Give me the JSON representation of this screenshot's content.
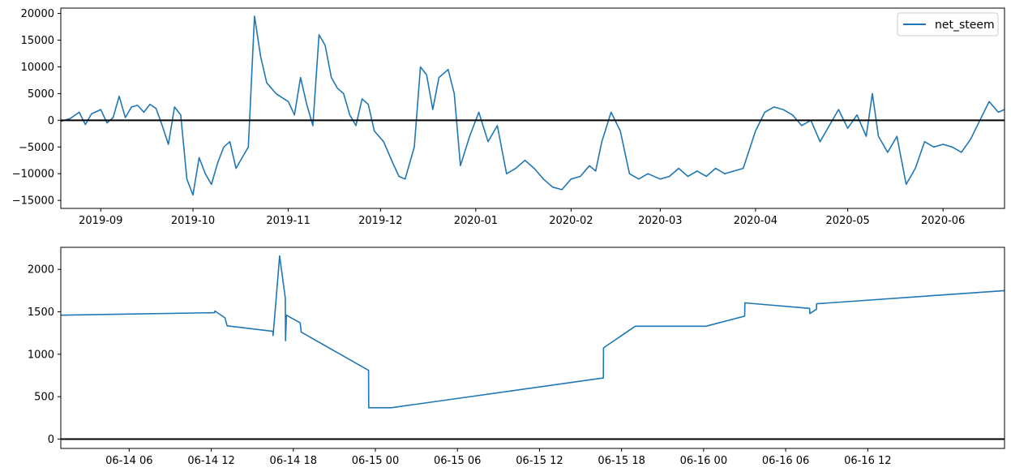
{
  "colors": {
    "series": "#1f77b4",
    "zero_line": "#000000",
    "axes": "#000000",
    "legend_frame": "#cccccc",
    "background": "#ffffff"
  },
  "chart_data": [
    {
      "type": "line",
      "title": "",
      "xlabel": "",
      "ylabel": "",
      "legend": {
        "placement": "top-right",
        "entries": [
          "net_steem"
        ]
      },
      "grid": false,
      "xlim": [
        "2019-08-19",
        "2020-06-21"
      ],
      "ylim": [
        -16500,
        21000
      ],
      "x_ticks": [
        {
          "date": "2019-09-01",
          "label": "2019-09"
        },
        {
          "date": "2019-10-01",
          "label": "2019-10"
        },
        {
          "date": "2019-11-01",
          "label": "2019-11"
        },
        {
          "date": "2019-12-01",
          "label": "2019-12"
        },
        {
          "date": "2020-01-01",
          "label": "2020-01"
        },
        {
          "date": "2020-02-01",
          "label": "2020-02"
        },
        {
          "date": "2020-03-01",
          "label": "2020-03"
        },
        {
          "date": "2020-04-01",
          "label": "2020-04"
        },
        {
          "date": "2020-05-01",
          "label": "2020-05"
        },
        {
          "date": "2020-06-01",
          "label": "2020-06"
        }
      ],
      "y_ticks": [
        {
          "value": 20000,
          "label": "20000"
        },
        {
          "value": 15000,
          "label": "15000"
        },
        {
          "value": 10000,
          "label": "10000"
        },
        {
          "value": 5000,
          "label": "5000"
        },
        {
          "value": 0,
          "label": "0"
        },
        {
          "value": -5000,
          "label": "−5000"
        },
        {
          "value": -10000,
          "label": "−10000"
        },
        {
          "value": -15000,
          "label": "−15000"
        }
      ],
      "hline": 0,
      "series": [
        {
          "name": "net_steem",
          "x": [
            "2019-08-19",
            "2019-08-22",
            "2019-08-25",
            "2019-08-27",
            "2019-08-29",
            "2019-09-01",
            "2019-09-03",
            "2019-09-05",
            "2019-09-07",
            "2019-09-09",
            "2019-09-11",
            "2019-09-13",
            "2019-09-15",
            "2019-09-17",
            "2019-09-19",
            "2019-09-21",
            "2019-09-23",
            "2019-09-25",
            "2019-09-27",
            "2019-09-29",
            "2019-10-01",
            "2019-10-03",
            "2019-10-05",
            "2019-10-07",
            "2019-10-09",
            "2019-10-11",
            "2019-10-13",
            "2019-10-15",
            "2019-10-17",
            "2019-10-19",
            "2019-10-21",
            "2019-10-23",
            "2019-10-25",
            "2019-10-28",
            "2019-11-01",
            "2019-11-03",
            "2019-11-05",
            "2019-11-07",
            "2019-11-09",
            "2019-11-11",
            "2019-11-13",
            "2019-11-15",
            "2019-11-17",
            "2019-11-19",
            "2019-11-21",
            "2019-11-23",
            "2019-11-25",
            "2019-11-27",
            "2019-11-29",
            "2019-12-02",
            "2019-12-05",
            "2019-12-07",
            "2019-12-09",
            "2019-12-12",
            "2019-12-14",
            "2019-12-16",
            "2019-12-18",
            "2019-12-20",
            "2019-12-23",
            "2019-12-25",
            "2019-12-27",
            "2019-12-30",
            "2020-01-02",
            "2020-01-05",
            "2020-01-08",
            "2020-01-11",
            "2020-01-14",
            "2020-01-17",
            "2020-01-20",
            "2020-01-23",
            "2020-01-26",
            "2020-01-29",
            "2020-02-01",
            "2020-02-04",
            "2020-02-07",
            "2020-02-09",
            "2020-02-11",
            "2020-02-14",
            "2020-02-17",
            "2020-02-20",
            "2020-02-23",
            "2020-02-26",
            "2020-03-01",
            "2020-03-04",
            "2020-03-07",
            "2020-03-10",
            "2020-03-13",
            "2020-03-16",
            "2020-03-19",
            "2020-03-22",
            "2020-03-25",
            "2020-03-28",
            "2020-04-01",
            "2020-04-04",
            "2020-04-07",
            "2020-04-10",
            "2020-04-13",
            "2020-04-16",
            "2020-04-19",
            "2020-04-22",
            "2020-04-25",
            "2020-04-28",
            "2020-05-01",
            "2020-05-04",
            "2020-05-07",
            "2020-05-09",
            "2020-05-11",
            "2020-05-14",
            "2020-05-17",
            "2020-05-20",
            "2020-05-23",
            "2020-05-26",
            "2020-05-29",
            "2020-06-01",
            "2020-06-04",
            "2020-06-07",
            "2020-06-10",
            "2020-06-13",
            "2020-06-16",
            "2020-06-19",
            "2020-06-21"
          ],
          "y": [
            -200,
            300,
            1500,
            -800,
            1200,
            2000,
            -500,
            500,
            4500,
            500,
            2500,
            2800,
            1500,
            3000,
            2200,
            -1000,
            -4500,
            2500,
            1000,
            -11000,
            -14000,
            -7000,
            -10000,
            -12000,
            -8000,
            -5000,
            -4000,
            -9000,
            -7000,
            -5000,
            19500,
            12000,
            7000,
            5000,
            3500,
            1000,
            8000,
            3000,
            -1000,
            16000,
            14000,
            8000,
            6000,
            5000,
            1000,
            -1000,
            4000,
            3000,
            -2000,
            -4000,
            -8000,
            -10500,
            -11000,
            -5000,
            10000,
            8500,
            2000,
            8000,
            9500,
            5000,
            -8500,
            -3000,
            1500,
            -4000,
            -1000,
            -10000,
            -9000,
            -7500,
            -9000,
            -11000,
            -12500,
            -13000,
            -11000,
            -10500,
            -8500,
            -9500,
            -4000,
            1500,
            -2000,
            -10000,
            -11000,
            -10000,
            -11000,
            -10500,
            -9000,
            -10500,
            -9500,
            -10500,
            -9000,
            -10000,
            -9500,
            -9000,
            -2000,
            1500,
            2500,
            2000,
            1000,
            -1000,
            0,
            -4000,
            -1000,
            2000,
            -1500,
            1000,
            -3000,
            5000,
            -3000,
            -6000,
            -3000,
            -12000,
            -9000,
            -4000,
            -5000,
            -4500,
            -5000,
            -6000,
            -3500,
            0,
            3500,
            1500,
            2000
          ]
        }
      ]
    },
    {
      "type": "line",
      "title": "",
      "xlabel": "",
      "ylabel": "",
      "grid": false,
      "xlim": [
        "2020-06-14T01:00",
        "2020-06-16T22:00"
      ],
      "ylim": [
        -110,
        2260
      ],
      "x_ticks": [
        {
          "datetime": "2020-06-14T06:00",
          "label": "06-14 06"
        },
        {
          "datetime": "2020-06-14T12:00",
          "label": "06-14 12"
        },
        {
          "datetime": "2020-06-14T18:00",
          "label": "06-14 18"
        },
        {
          "datetime": "2020-06-15T00:00",
          "label": "06-15 00"
        },
        {
          "datetime": "2020-06-15T06:00",
          "label": "06-15 06"
        },
        {
          "datetime": "2020-06-15T12:00",
          "label": "06-15 12"
        },
        {
          "datetime": "2020-06-15T18:00",
          "label": "06-15 18"
        },
        {
          "datetime": "2020-06-16T00:00",
          "label": "06-16 00"
        },
        {
          "datetime": "2020-06-16T06:00",
          "label": "06-16 06"
        },
        {
          "datetime": "2020-06-16T12:00",
          "label": "06-16 12"
        }
      ],
      "y_ticks": [
        {
          "value": 2000,
          "label": "2000"
        },
        {
          "value": 1500,
          "label": "1500"
        },
        {
          "value": 1000,
          "label": "1000"
        },
        {
          "value": 500,
          "label": "500"
        },
        {
          "value": 0,
          "label": "0"
        }
      ],
      "hline": 0,
      "series": [
        {
          "x": [
            "2020-06-14T01:00",
            "2020-06-14T12:15",
            "2020-06-14T12:16",
            "2020-06-14T13:00",
            "2020-06-14T13:10",
            "2020-06-14T16:30",
            "2020-06-14T16:31",
            "2020-06-14T16:40",
            "2020-06-14T17:00",
            "2020-06-14T17:25",
            "2020-06-14T17:26",
            "2020-06-14T17:30",
            "2020-06-14T18:30",
            "2020-06-14T18:35",
            "2020-06-14T23:30",
            "2020-06-14T23:31",
            "2020-06-15T01:10",
            "2020-06-15T16:40",
            "2020-06-15T16:41",
            "2020-06-15T19:00",
            "2020-06-16T00:10",
            "2020-06-16T03:00",
            "2020-06-16T03:01",
            "2020-06-16T07:45",
            "2020-06-16T07:46",
            "2020-06-16T08:15",
            "2020-06-16T08:16",
            "2020-06-16T22:00"
          ],
          "y": [
            1460,
            1490,
            1510,
            1430,
            1335,
            1270,
            1220,
            1500,
            2160,
            1660,
            1160,
            1460,
            1370,
            1260,
            810,
            370,
            370,
            720,
            1075,
            1330,
            1330,
            1450,
            1605,
            1540,
            1480,
            1530,
            1595,
            1750
          ]
        }
      ]
    }
  ]
}
